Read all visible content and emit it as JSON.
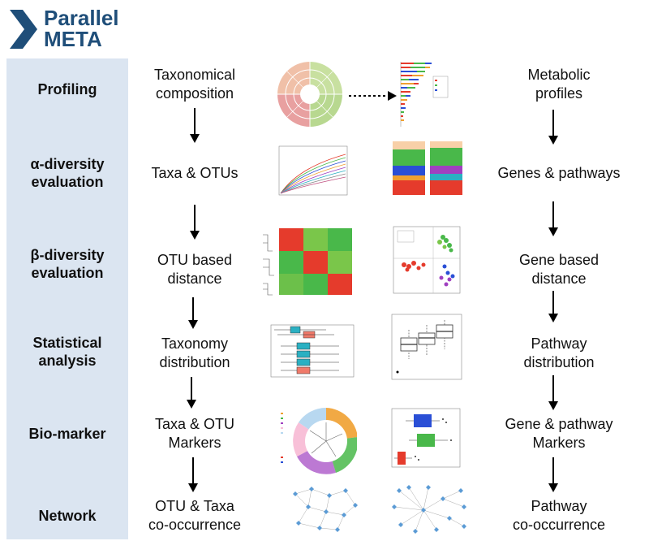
{
  "logo": {
    "line1": "Parallel",
    "line2": "META"
  },
  "stages": [
    {
      "lines": [
        "Profiling"
      ]
    },
    {
      "lines": [
        "α-diversity",
        "evaluation"
      ]
    },
    {
      "lines": [
        "β-diversity",
        "evaluation"
      ]
    },
    {
      "lines": [
        "Statistical",
        "analysis"
      ]
    },
    {
      "lines": [
        "Bio-marker"
      ]
    },
    {
      "lines": [
        "Network"
      ]
    }
  ],
  "left_column": [
    {
      "lines": [
        "Taxonomical",
        "composition"
      ]
    },
    {
      "lines": [
        "Taxa & OTUs"
      ]
    },
    {
      "lines": [
        "OTU based",
        "distance"
      ]
    },
    {
      "lines": [
        "Taxonomy",
        "distribution"
      ]
    },
    {
      "lines": [
        "Taxa & OTU",
        "Markers"
      ]
    },
    {
      "lines": [
        "OTU & Taxa",
        "co-occurrence"
      ]
    }
  ],
  "right_column": [
    {
      "lines": [
        "Metabolic",
        "profiles"
      ]
    },
    {
      "lines": [
        "Genes & pathways"
      ]
    },
    {
      "lines": [
        "Gene based",
        "distance"
      ]
    },
    {
      "lines": [
        "Pathway",
        "distribution"
      ]
    },
    {
      "lines": [
        "Gene & pathway",
        "Markers"
      ]
    },
    {
      "lines": [
        "Pathway",
        "co-occurrence"
      ]
    }
  ],
  "thumbnails": [
    "taxonomy-sunburst-chart",
    "stacked-bar-chart",
    "rarefaction-curve-chart",
    "stacked-bar-chart",
    "distance-heatmap-chart",
    "pca-scatter-chart",
    "horizontal-boxplot-chart",
    "boxplot-chart",
    "circular-cladogram-chart",
    "marker-boxplot-chart",
    "otu-network-graph",
    "gene-network-graph"
  ],
  "colors": {
    "brand": "#1f4e79",
    "stage_bg": "#dbe5f1",
    "green": "#49b84a",
    "red": "#e53b2c",
    "blue": "#2a4fd6",
    "teal": "#2ab0c2",
    "salmon": "#f07a6a",
    "node": "#5b9bd5"
  }
}
